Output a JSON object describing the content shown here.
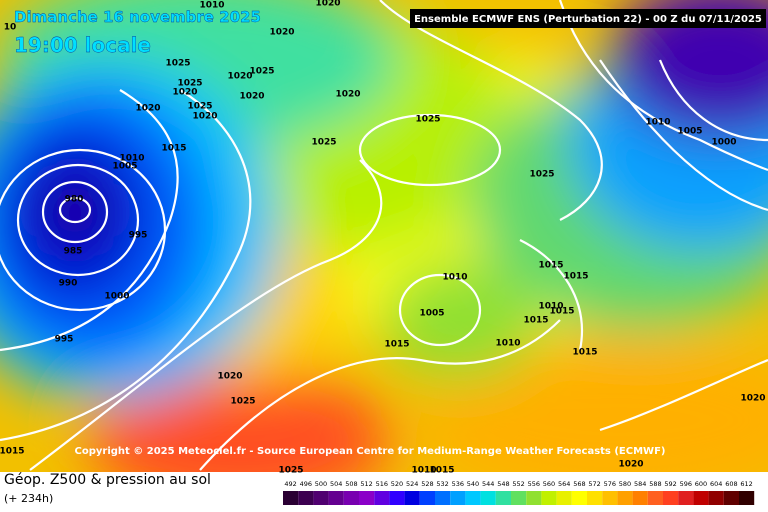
{
  "header": {
    "title": "Ensemble ECMWF ENS  (Perturbation 22)  - 00 Z du 07/11/2025",
    "date": "Dimanche 16 novembre 2025",
    "time": "19:00 locale"
  },
  "copyright": "Copyright © 2025 Meteociel.fr - Source European Centre for Medium-Range Weather Forecasts (ECMWF)",
  "footer": {
    "title": "Géop. Z500 & pression au sol",
    "subtitle": "(+ 234h)"
  },
  "isobar_labels": [
    "1010",
    "1020",
    "10",
    "1020",
    "1025",
    "1025",
    "1020",
    "1025",
    "1020",
    "1020",
    "1020",
    "1025",
    "1020",
    "1020",
    "1025",
    "1010",
    "1005",
    "1000",
    "1015",
    "1025",
    "1010",
    "1005",
    "1025",
    "980",
    "995",
    "985",
    "1015",
    "1015",
    "990",
    "1010",
    "1000",
    "1010",
    "1005",
    "1015",
    "1015",
    "995",
    "1015",
    "1010",
    "1015",
    "1020",
    "1025",
    "1020",
    "1015",
    "1025",
    "1010",
    "1015",
    "1020"
  ],
  "legend": {
    "values": [
      492,
      496,
      500,
      504,
      508,
      512,
      516,
      520,
      524,
      528,
      532,
      536,
      540,
      544,
      548,
      552,
      556,
      560,
      564,
      568,
      572,
      576,
      580,
      584,
      588,
      592,
      596,
      600,
      604,
      608,
      612
    ],
    "colors": [
      "#2a0033",
      "#3c0050",
      "#500070",
      "#640090",
      "#7800b0",
      "#8a00c8",
      "#6000e0",
      "#3000ff",
      "#0000e0",
      "#0040ff",
      "#0070ff",
      "#00a0ff",
      "#00c8ff",
      "#00e0e0",
      "#30e0a0",
      "#60e060",
      "#90e030",
      "#c0f000",
      "#e8f000",
      "#ffff00",
      "#ffe000",
      "#ffc000",
      "#ffa000",
      "#ff8000",
      "#ff6020",
      "#ff4020",
      "#e02020",
      "#c00000",
      "#900000",
      "#600000",
      "#300000"
    ]
  }
}
